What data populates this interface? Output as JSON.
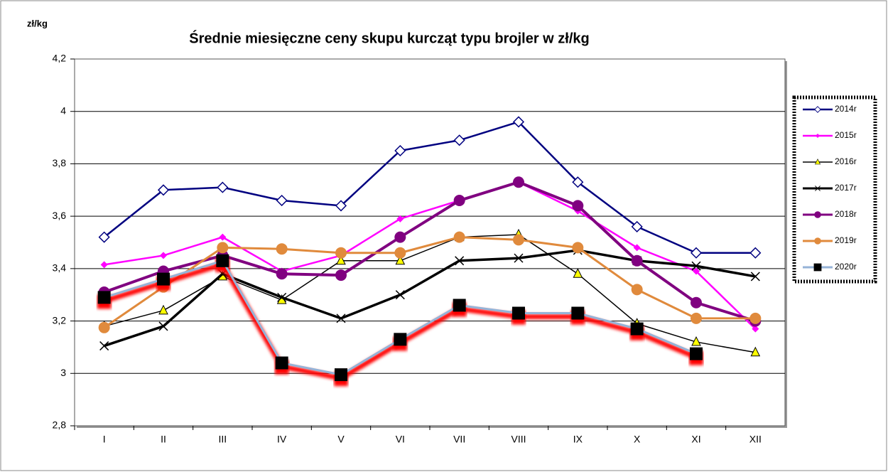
{
  "chart_data": {
    "type": "line",
    "title": "Średnie miesięczne ceny skupu kurcząt typu brojler w zł/kg",
    "y_label": "zł/kg",
    "categories": [
      "I",
      "II",
      "III",
      "IV",
      "V",
      "VI",
      "VII",
      "VIII",
      "IX",
      "X",
      "XI",
      "XII"
    ],
    "ylim": [
      2.8,
      4.2
    ],
    "yticks": [
      {
        "value": 2.8,
        "label": "2,8"
      },
      3,
      {
        "value": 3.2,
        "label": "3,2"
      },
      {
        "value": 3.4,
        "label": "3,4"
      },
      {
        "value": 3.6,
        "label": "3,6"
      },
      {
        "value": 3.8,
        "label": "3,8"
      },
      4,
      {
        "value": 4.2,
        "label": "4,2"
      }
    ],
    "grid": true,
    "legend": "right",
    "series": [
      {
        "name": "2014r",
        "color": "#000080",
        "marker": "diamond",
        "width": 2.5,
        "values": [
          3.52,
          3.7,
          3.71,
          3.66,
          3.64,
          3.85,
          3.89,
          3.96,
          3.73,
          3.56,
          3.46,
          3.46
        ]
      },
      {
        "name": "2015r",
        "color": "#ff00ff",
        "marker": "small-diamond",
        "width": 2.5,
        "values": [
          3.415,
          3.45,
          3.52,
          3.39,
          3.45,
          3.59,
          3.66,
          3.73,
          3.62,
          3.48,
          3.39,
          3.17
        ]
      },
      {
        "name": "2016r",
        "color": "#000000",
        "marker": "triangle",
        "width": 1.5,
        "values": [
          3.18,
          3.24,
          3.37,
          3.28,
          3.43,
          3.43,
          3.52,
          3.53,
          3.38,
          3.19,
          3.12,
          3.08
        ]
      },
      {
        "name": "2017r",
        "color": "#000000",
        "marker": "cross",
        "width": 3.5,
        "values": [
          3.105,
          3.18,
          3.38,
          3.29,
          3.21,
          3.3,
          3.43,
          3.44,
          3.47,
          3.43,
          3.41,
          3.37
        ]
      },
      {
        "name": "2018r",
        "color": "#800080",
        "marker": "circle",
        "width": 4,
        "values": [
          3.31,
          3.39,
          3.45,
          3.38,
          3.375,
          3.52,
          3.66,
          3.73,
          3.64,
          3.43,
          3.27,
          3.2
        ]
      },
      {
        "name": "2019r",
        "color": "#e08a3c",
        "marker": "circle",
        "width": 3,
        "values": [
          3.175,
          3.33,
          3.48,
          3.475,
          3.46,
          3.46,
          3.52,
          3.51,
          3.48,
          3.32,
          3.21,
          3.21
        ]
      },
      {
        "name": "2020r",
        "color": "#95b3d7",
        "marker": "square",
        "width": 3,
        "shadow": "#ff0000",
        "values": [
          3.29,
          3.36,
          3.43,
          3.04,
          2.995,
          3.13,
          3.26,
          3.23,
          3.23,
          3.17,
          3.075,
          null
        ]
      }
    ]
  }
}
